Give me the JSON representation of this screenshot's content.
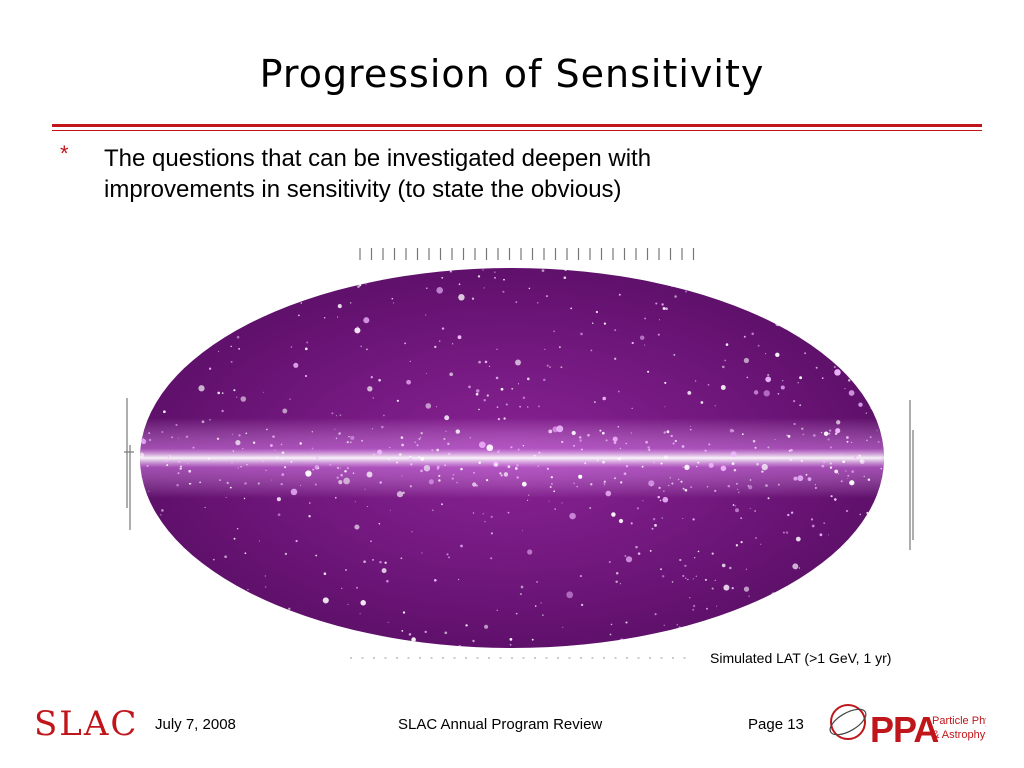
{
  "slide": {
    "title": "Progression of Sensitivity",
    "bullet_marker": "*",
    "bullet_text": "The questions that can be investigated deepen with improvements in sensitivity (to state the obvious)"
  },
  "figure": {
    "caption": "Simulated LAT (>1 GeV, 1 yr)"
  },
  "footer": {
    "date": "July 7, 2008",
    "event": "SLAC Annual Program Review",
    "page": "Page 13"
  },
  "logos": {
    "left": "SLAC",
    "right_main": "PPA",
    "right_sub1": "Particle Physics",
    "right_sub2": "& Astrophysics"
  },
  "colors": {
    "accent_red": "#c0161b",
    "sky_purple": "#7a1a86",
    "plane_glow": "#f4c9ff"
  }
}
